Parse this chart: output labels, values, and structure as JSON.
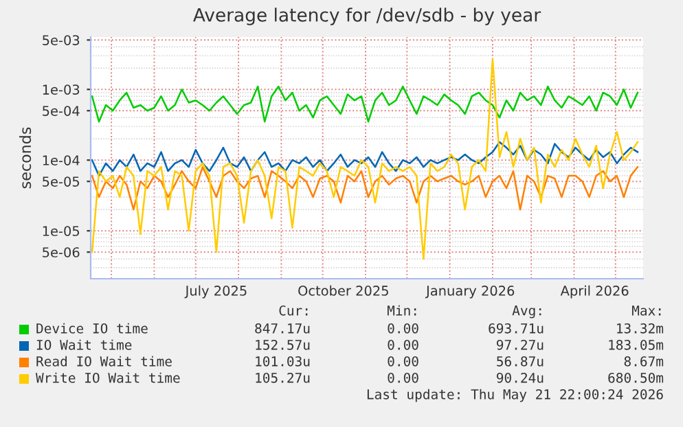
{
  "chart_data": {
    "type": "line",
    "title": "Average latency for /dev/sdb - by year",
    "ylabel": "seconds",
    "log": "y",
    "grid": true,
    "legend": "bottom",
    "marker": "none",
    "line_style": "solid",
    "xlim": [
      "2025-04-16",
      "2026-05-21"
    ],
    "xticks": [
      {
        "value": "2025-05-01",
        "label": null
      },
      {
        "value": "2025-06-01",
        "label": null
      },
      {
        "value": "2025-07-01",
        "label": null
      },
      {
        "value": "2025-07-16",
        "label": "July 2025"
      },
      {
        "value": "2025-08-01",
        "label": null
      },
      {
        "value": "2025-09-01",
        "label": null
      },
      {
        "value": "2025-10-01",
        "label": null
      },
      {
        "value": "2025-10-16",
        "label": "October 2025"
      },
      {
        "value": "2025-11-01",
        "label": null
      },
      {
        "value": "2025-12-01",
        "label": null
      },
      {
        "value": "2026-01-01",
        "label": null
      },
      {
        "value": "2026-01-16",
        "label": "January 2026"
      },
      {
        "value": "2026-02-01",
        "label": null
      },
      {
        "value": "2026-03-01",
        "label": null
      },
      {
        "value": "2026-04-01",
        "label": null
      },
      {
        "value": "2026-04-16",
        "label": "April 2026"
      },
      {
        "value": "2026-05-01",
        "label": null
      }
    ],
    "ylim": [
      2.1e-06,
      0.0055
    ],
    "yticks": [
      {
        "value": 5e-06,
        "label": "5e-06"
      },
      {
        "value": 1e-05,
        "label": "1e-05"
      },
      {
        "value": 5e-05,
        "label": "5e-05"
      },
      {
        "value": 0.0001,
        "label": "1e-04"
      },
      {
        "value": 0.0005,
        "label": "5e-04"
      },
      {
        "value": 0.001,
        "label": "1e-03"
      },
      {
        "value": 0.005,
        "label": "5e-03"
      }
    ],
    "x": [
      "2025-04-17",
      "2025-04-22",
      "2025-04-27",
      "2025-05-02",
      "2025-05-07",
      "2025-05-12",
      "2025-05-17",
      "2025-05-22",
      "2025-05-27",
      "2025-06-01",
      "2025-06-06",
      "2025-06-11",
      "2025-06-16",
      "2025-06-21",
      "2025-06-26",
      "2025-07-01",
      "2025-07-06",
      "2025-07-11",
      "2025-07-16",
      "2025-07-21",
      "2025-07-26",
      "2025-07-31",
      "2025-08-05",
      "2025-08-10",
      "2025-08-15",
      "2025-08-20",
      "2025-08-25",
      "2025-08-30",
      "2025-09-04",
      "2025-09-09",
      "2025-09-14",
      "2025-09-19",
      "2025-09-24",
      "2025-09-29",
      "2025-10-04",
      "2025-10-09",
      "2025-10-14",
      "2025-10-19",
      "2025-10-24",
      "2025-10-29",
      "2025-11-03",
      "2025-11-08",
      "2025-11-13",
      "2025-11-18",
      "2025-11-23",
      "2025-11-28",
      "2025-12-03",
      "2025-12-08",
      "2025-12-13",
      "2025-12-18",
      "2025-12-23",
      "2025-12-28",
      "2026-01-02",
      "2026-01-07",
      "2026-01-12",
      "2026-01-17",
      "2026-01-22",
      "2026-01-27",
      "2026-02-01",
      "2026-02-06",
      "2026-02-11",
      "2026-02-16",
      "2026-02-21",
      "2026-02-26",
      "2026-03-03",
      "2026-03-08",
      "2026-03-13",
      "2026-03-18",
      "2026-03-23",
      "2026-03-28",
      "2026-04-02",
      "2026-04-07",
      "2026-04-12",
      "2026-04-17",
      "2026-04-22",
      "2026-04-27",
      "2026-05-02",
      "2026-05-07",
      "2026-05-12",
      "2026-05-17"
    ],
    "series": [
      {
        "name": "Device IO time",
        "color": "#00cc00",
        "values": [
          0.0008,
          0.00035,
          0.0006,
          0.0005,
          0.0007,
          0.0009,
          0.00055,
          0.0006,
          0.0005,
          0.00055,
          0.0008,
          0.0005,
          0.0006,
          0.001,
          0.00065,
          0.0007,
          0.0006,
          0.0005,
          0.00065,
          0.0008,
          0.0006,
          0.00045,
          0.0006,
          0.00065,
          0.0011,
          0.00035,
          0.0008,
          0.0011,
          0.0007,
          0.0009,
          0.0005,
          0.0006,
          0.0004,
          0.0007,
          0.0008,
          0.0006,
          0.00045,
          0.00085,
          0.0007,
          0.0008,
          0.00035,
          0.0007,
          0.0009,
          0.0006,
          0.0007,
          0.0011,
          0.0007,
          0.00045,
          0.0008,
          0.0007,
          0.0006,
          0.00085,
          0.0007,
          0.0006,
          0.00045,
          0.0008,
          0.0009,
          0.0007,
          0.0006,
          0.0004,
          0.0007,
          0.0005,
          0.0009,
          0.0007,
          0.0008,
          0.0006,
          0.0011,
          0.0007,
          0.00055,
          0.0008,
          0.0007,
          0.0006,
          0.0008,
          0.0005,
          0.0009,
          0.0008,
          0.0006,
          0.001,
          0.00055,
          0.0009
        ]
      },
      {
        "name": "IO Wait time",
        "color": "#0066b3",
        "values": [
          0.0001,
          6e-05,
          9e-05,
          7e-05,
          0.0001,
          8e-05,
          0.00012,
          7e-05,
          9e-05,
          8e-05,
          0.00013,
          7e-05,
          9e-05,
          0.0001,
          8e-05,
          0.00014,
          9e-05,
          7e-05,
          0.0001,
          0.00015,
          9e-05,
          8e-05,
          0.00011,
          7e-05,
          0.0001,
          0.00013,
          8e-05,
          9e-05,
          7e-05,
          0.0001,
          9e-05,
          0.00011,
          8e-05,
          0.0001,
          7e-05,
          9e-05,
          0.00012,
          8e-05,
          0.0001,
          9e-05,
          0.00011,
          8e-05,
          0.00013,
          9e-05,
          7e-05,
          0.0001,
          9e-05,
          0.00011,
          8e-05,
          0.0001,
          9e-05,
          0.0001,
          0.00011,
          0.0001,
          0.00012,
          0.0001,
          9e-05,
          0.00011,
          0.00013,
          0.00018,
          0.00015,
          0.00012,
          0.00016,
          0.0001,
          0.00014,
          0.00012,
          9e-05,
          0.00017,
          0.00013,
          0.00011,
          0.00015,
          0.00012,
          0.0001,
          0.00014,
          0.00011,
          0.00013,
          9e-05,
          0.00012,
          0.00015,
          0.00013
        ]
      },
      {
        "name": "Read IO Wait time",
        "color": "#ff8000",
        "values": [
          6e-05,
          3e-05,
          5e-05,
          4e-05,
          6e-05,
          4.5e-05,
          2e-05,
          5e-05,
          4e-05,
          6e-05,
          5e-05,
          3e-05,
          4.5e-05,
          7e-05,
          5e-05,
          4e-05,
          8e-05,
          5e-05,
          3e-05,
          6e-05,
          7e-05,
          5e-05,
          4e-05,
          5.5e-05,
          6e-05,
          3e-05,
          7e-05,
          6e-05,
          5e-05,
          4e-05,
          6e-05,
          5e-05,
          3e-05,
          5.5e-05,
          6e-05,
          5e-05,
          2.5e-05,
          6e-05,
          5e-05,
          7e-05,
          3e-05,
          5e-05,
          6e-05,
          4.5e-05,
          5.5e-05,
          6e-05,
          5e-05,
          2.5e-05,
          5e-05,
          6e-05,
          5e-05,
          5.5e-05,
          6e-05,
          5e-05,
          4.5e-05,
          5e-05,
          6e-05,
          3e-05,
          5e-05,
          6e-05,
          4e-05,
          7e-05,
          2e-05,
          6e-05,
          5e-05,
          3e-05,
          6e-05,
          5.5e-05,
          3e-05,
          6e-05,
          6e-05,
          5e-05,
          3e-05,
          6e-05,
          7e-05,
          5e-05,
          6e-05,
          3e-05,
          6e-05,
          8e-05
        ]
      },
      {
        "name": "Write IO Wait time",
        "color": "#ffcc00",
        "values": [
          5e-06,
          7e-05,
          5e-05,
          6e-05,
          3e-05,
          8e-05,
          6e-05,
          9e-06,
          7e-05,
          6e-05,
          8e-05,
          2e-05,
          7e-05,
          6e-05,
          1e-05,
          7e-05,
          9e-05,
          6e-05,
          5e-06,
          8e-05,
          9e-05,
          6e-05,
          1.3e-05,
          7e-05,
          0.0001,
          6e-05,
          1.5e-05,
          8e-05,
          7e-05,
          1.1e-05,
          8e-05,
          7e-05,
          6e-05,
          9e-05,
          7e-05,
          3e-05,
          8e-05,
          7e-05,
          6e-05,
          0.0001,
          8e-05,
          2.5e-05,
          9e-05,
          7e-05,
          8e-05,
          7e-05,
          8e-05,
          6e-05,
          4e-06,
          9e-05,
          7e-05,
          8e-05,
          0.00012,
          9e-05,
          2e-05,
          8e-05,
          0.0001,
          7e-05,
          0.0027,
          0.00011,
          0.00025,
          8e-05,
          0.0002,
          0.0001,
          0.00015,
          2.5e-05,
          0.00012,
          8e-05,
          0.00014,
          0.0001,
          0.0002,
          0.00012,
          8e-05,
          0.00016,
          4e-05,
          0.00012,
          0.00025,
          0.0001,
          0.00013,
          0.00018
        ]
      }
    ],
    "annotations": [
      "Cur:",
      "Min:",
      "Avg:",
      "Max:",
      "847.17u",
      "0.00",
      "693.71u",
      "13.32m",
      "152.57u",
      "0.00",
      "97.27u",
      "183.05m",
      "101.03u",
      "0.00",
      "56.87u",
      "8.67m",
      "105.27u",
      "0.00",
      "90.24u",
      "680.50m",
      "Last update: Thu May 21 22:00:24 2026"
    ]
  }
}
